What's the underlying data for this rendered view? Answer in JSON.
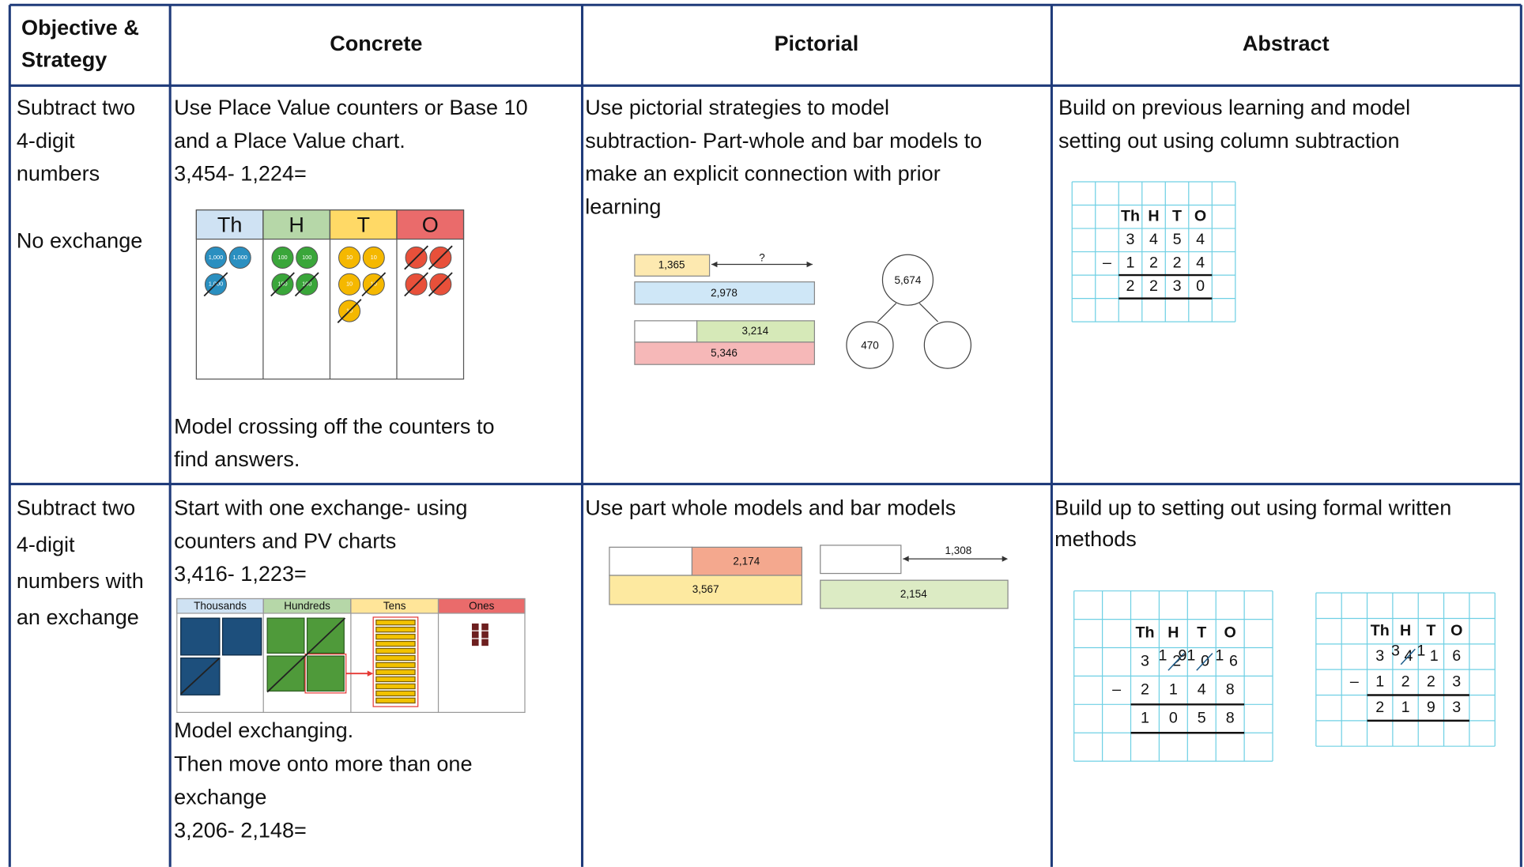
{
  "table": {
    "header": {
      "objective": [
        "Objective &",
        "Strategy"
      ],
      "concrete": "Concrete",
      "pictorial": "Pictorial",
      "abstract": "Abstract"
    },
    "rows": [
      {
        "objective": [
          "Subtract two",
          "4-digit",
          "numbers"
        ],
        "objective_note": "No exchange",
        "concrete": {
          "intro": [
            "Use Place Value counters or Base 10",
            "and a Place Value chart.",
            "3,454- 1,224="
          ],
          "chart": [
            {
              "label": "Th",
              "counter": "1,000",
              "count": 3,
              "crossed": 1
            },
            {
              "label": "H",
              "counter": "100",
              "count": 4,
              "crossed": 2
            },
            {
              "label": "T",
              "counter": "10",
              "count": 5,
              "crossed": 2
            },
            {
              "label": "O",
              "count": 4,
              "crossed": 4
            }
          ],
          "outro": [
            "Model crossing off the counters to",
            "find answers."
          ]
        },
        "pictorial": {
          "text": [
            "Use pictorial strategies to model",
            "subtraction- Part-whole and bar models to",
            "make an explicit connection with prior",
            "learning"
          ],
          "bars": [
            {
              "part": "1,365",
              "unknown": "?",
              "whole": "2,978"
            },
            {
              "part": "3,214",
              "whole": "5,346"
            }
          ],
          "part_whole": {
            "whole": "5,674",
            "part": "470"
          }
        },
        "abstract": {
          "text": [
            "Build on previous learning and model",
            "setting out using column subtraction"
          ],
          "grids": [
            {
              "headers": [
                "Th",
                "H",
                "T",
                "O"
              ],
              "sign": "–",
              "rows": [
                [
                  {
                    "d": "3"
                  },
                  {
                    "d": "4"
                  },
                  {
                    "d": "5"
                  },
                  {
                    "d": "4"
                  }
                ],
                [
                  {
                    "d": "1"
                  },
                  {
                    "d": "2"
                  },
                  {
                    "d": "2"
                  },
                  {
                    "d": "4"
                  }
                ],
                [
                  {
                    "d": "2"
                  },
                  {
                    "d": "2"
                  },
                  {
                    "d": "3"
                  },
                  {
                    "d": "0"
                  }
                ]
              ]
            }
          ]
        }
      },
      {
        "objective": [
          "Subtract two",
          "4-digit",
          "numbers with",
          "an exchange"
        ],
        "concrete": {
          "intro": [
            "Start with one exchange- using",
            "counters and PV charts",
            "3,416- 1,223="
          ],
          "chart_headers": [
            "Thousands",
            "Hundreds",
            "Tens",
            "Ones"
          ],
          "outro": [
            "Model exchanging.",
            "Then move onto more than one",
            "exchange",
            "3,206- 2,148="
          ]
        },
        "pictorial": {
          "text": [
            "Use part whole models and bar models"
          ],
          "bars": [
            {
              "part": "2,174",
              "whole": "3,567"
            },
            {
              "difference": "1,308",
              "whole": "2,154"
            }
          ]
        },
        "abstract": {
          "text": [
            "Build up to setting out using formal written",
            "methods"
          ],
          "grids": [
            {
              "headers": [
                "Th",
                "H",
                "T",
                "O"
              ],
              "sign": "–",
              "rows": [
                [
                  {
                    "d": "3"
                  },
                  {
                    "d": "2",
                    "small": "1",
                    "crossed": true
                  },
                  {
                    "d": "0",
                    "small": "91",
                    "crossed": true
                  },
                  {
                    "d": "6",
                    "small": "1"
                  }
                ],
                [
                  {
                    "d": "2"
                  },
                  {
                    "d": "1"
                  },
                  {
                    "d": "4"
                  },
                  {
                    "d": "8"
                  }
                ],
                [
                  {
                    "d": "1"
                  },
                  {
                    "d": "0"
                  },
                  {
                    "d": "5"
                  },
                  {
                    "d": "8"
                  }
                ]
              ]
            },
            {
              "headers": [
                "Th",
                "H",
                "T",
                "O"
              ],
              "sign": "–",
              "rows": [
                [
                  {
                    "d": "3"
                  },
                  {
                    "d": "4",
                    "small": "3",
                    "crossed": true
                  },
                  {
                    "d": "1",
                    "small": "1"
                  },
                  {
                    "d": "6"
                  }
                ],
                [
                  {
                    "d": "1"
                  },
                  {
                    "d": "2"
                  },
                  {
                    "d": "2"
                  },
                  {
                    "d": "3"
                  }
                ],
                [
                  {
                    "d": "2"
                  },
                  {
                    "d": "1"
                  },
                  {
                    "d": "9"
                  },
                  {
                    "d": "3"
                  }
                ]
              ]
            }
          ]
        }
      }
    ]
  }
}
